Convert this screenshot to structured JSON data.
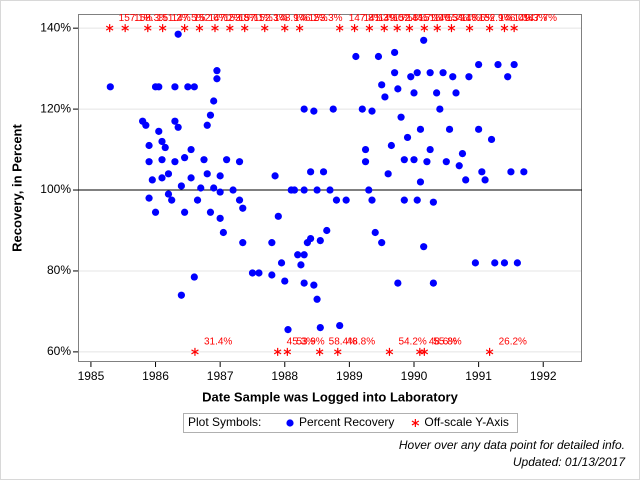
{
  "chart_data": {
    "type": "scatter",
    "xlabel": "Date Sample was Logged into Laboratory",
    "ylabel": "Recovery, in Percent",
    "xlim": [
      1984.8,
      1992.6
    ],
    "xticks": [
      1985,
      1986,
      1987,
      1988,
      1989,
      1990,
      1991,
      1992
    ],
    "ylim": [
      57.5,
      143.5
    ],
    "yticks": [
      {
        "value": 60,
        "label": "60%"
      },
      {
        "value": 80,
        "label": "80%"
      },
      {
        "value": 100,
        "label": "100%"
      },
      {
        "value": 120,
        "label": "120%"
      },
      {
        "value": 140,
        "label": "140%"
      }
    ],
    "grid": true,
    "refline": 100,
    "legend_title": "Plot Symbols:",
    "footnotes": [
      "Hover over any data point for detailed info.",
      "Updated: 01/13/2017"
    ],
    "series": [
      {
        "name": "Percent Recovery",
        "color": "#0000ff",
        "marker": "circle",
        "x": [
          1985.3,
          1985.8,
          1985.85,
          1985.9,
          1985.9,
          1985.95,
          1985.9,
          1986.0,
          1986.05,
          1986.0,
          1986.05,
          1986.1,
          1986.1,
          1986.1,
          1986.15,
          1986.2,
          1986.2,
          1986.25,
          1986.3,
          1986.3,
          1986.35,
          1986.3,
          1986.35,
          1986.4,
          1986.4,
          1986.45,
          1986.45,
          1986.5,
          1986.55,
          1986.55,
          1986.6,
          1986.6,
          1986.65,
          1986.7,
          1986.75,
          1986.8,
          1986.8,
          1986.85,
          1986.85,
          1986.9,
          1986.9,
          1986.95,
          1986.95,
          1987.0,
          1987.0,
          1987.0,
          1987.05,
          1987.1,
          1987.2,
          1987.3,
          1987.3,
          1987.35,
          1987.35,
          1987.5,
          1987.6,
          1987.8,
          1987.85,
          1987.8,
          1987.9,
          1987.95,
          1988.0,
          1988.05,
          1988.1,
          1988.15,
          1988.3,
          1988.2,
          1988.25,
          1988.3,
          1988.3,
          1988.35,
          1988.4,
          1988.45,
          1988.3,
          1988.4,
          1988.45,
          1988.5,
          1988.5,
          1988.55,
          1988.55,
          1988.6,
          1988.65,
          1988.7,
          1988.75,
          1988.85,
          1988.8,
          1988.95,
          1989.1,
          1989.2,
          1989.25,
          1989.25,
          1989.3,
          1989.35,
          1989.35,
          1989.4,
          1989.45,
          1989.5,
          1989.5,
          1989.55,
          1989.6,
          1989.65,
          1989.7,
          1989.7,
          1989.75,
          1989.75,
          1989.8,
          1989.85,
          1989.85,
          1989.9,
          1989.95,
          1990.0,
          1990.0,
          1990.05,
          1990.05,
          1990.1,
          1990.1,
          1990.15,
          1990.15,
          1990.2,
          1990.25,
          1990.25,
          1990.3,
          1990.3,
          1990.35,
          1990.4,
          1990.45,
          1990.5,
          1990.55,
          1990.6,
          1990.65,
          1990.7,
          1990.75,
          1990.8,
          1990.85,
          1990.95,
          1991.0,
          1991.0,
          1991.05,
          1991.1,
          1991.2,
          1991.25,
          1991.3,
          1991.4,
          1991.45,
          1991.5,
          1991.55,
          1991.6,
          1991.7
        ],
        "values": [
          125.5,
          117,
          116,
          111,
          107,
          102.5,
          98,
          125.5,
          125.5,
          94.5,
          114.5,
          103,
          107.5,
          112,
          110.5,
          104,
          99,
          97.5,
          107,
          117,
          115.5,
          125.5,
          138.5,
          74,
          101,
          108,
          94.5,
          125.5,
          110,
          103,
          125.5,
          78.5,
          97.5,
          100.5,
          107.5,
          104,
          116,
          118.5,
          94.5,
          100.5,
          122,
          127.5,
          129.5,
          99.5,
          103.5,
          93,
          89.5,
          107.5,
          100,
          107,
          97.5,
          87,
          95.5,
          79.5,
          79.5,
          87,
          103.5,
          79,
          93.5,
          82,
          77.5,
          65.5,
          100,
          100,
          100,
          84,
          81.5,
          84,
          77,
          87,
          104.5,
          119.5,
          120,
          88,
          76.5,
          100,
          73,
          66,
          87.5,
          104.5,
          90,
          100,
          120,
          66.5,
          97.5,
          97.5,
          133,
          120,
          110,
          107,
          100,
          97.5,
          119.5,
          89.5,
          133,
          126,
          87,
          123,
          104,
          111,
          134,
          129,
          125,
          77,
          118,
          97.5,
          107.5,
          113,
          128,
          124,
          107.5,
          97.5,
          129,
          115,
          102,
          137,
          86,
          107,
          129,
          110,
          97,
          77,
          124,
          120,
          129,
          107,
          115,
          128,
          124,
          106,
          109,
          102.5,
          128,
          82,
          131,
          115,
          104.5,
          102.5,
          112.5,
          82,
          131,
          82,
          128,
          104.5,
          131,
          82,
          104.5
        ]
      },
      {
        "name": "Off-scale Y-Axis",
        "color": "#ff0000",
        "marker": "star",
        "x": [
          1985.29,
          1985.53,
          1985.88,
          1986.11,
          1986.45,
          1986.68,
          1986.92,
          1987.15,
          1987.38,
          1987.69,
          1988.0,
          1988.23,
          1988.85,
          1989.08,
          1989.31,
          1989.54,
          1989.74,
          1989.93,
          1990.16,
          1990.36,
          1990.58,
          1990.86,
          1991.17,
          1991.4,
          1991.55,
          1986.61,
          1987.89,
          1988.04,
          1988.54,
          1988.82,
          1989.62,
          1990.09,
          1990.16,
          1991.17
        ],
        "values": [
          140,
          140,
          140,
          140,
          140,
          140,
          140,
          140,
          140,
          140,
          140,
          140,
          140,
          140,
          140,
          140,
          140,
          140,
          140,
          140,
          140,
          140,
          140,
          140,
          140,
          60,
          60,
          60,
          60,
          60,
          60,
          60,
          60,
          60
        ],
        "point_labels": [
          "157.1%",
          "158.3%",
          "151.2%",
          "147.5%",
          "152.6%",
          "147.2%",
          "153.8%",
          "157.1%",
          "152.3%",
          "148.9%",
          "146.2%",
          "153.3%",
          "147.8%",
          "141.3%",
          "149.0%",
          "152.8%",
          "144.7%",
          "151.9%",
          "146.3%",
          "154.1%",
          "148.6%",
          "152.9%",
          "146.0%",
          "149.3%",
          "147.7%",
          "31.4%",
          "45.3%",
          "53.9%",
          "58.4%",
          "48.8%",
          "54.2%",
          "48.6%",
          "55.8%",
          "26.2%"
        ]
      }
    ]
  }
}
